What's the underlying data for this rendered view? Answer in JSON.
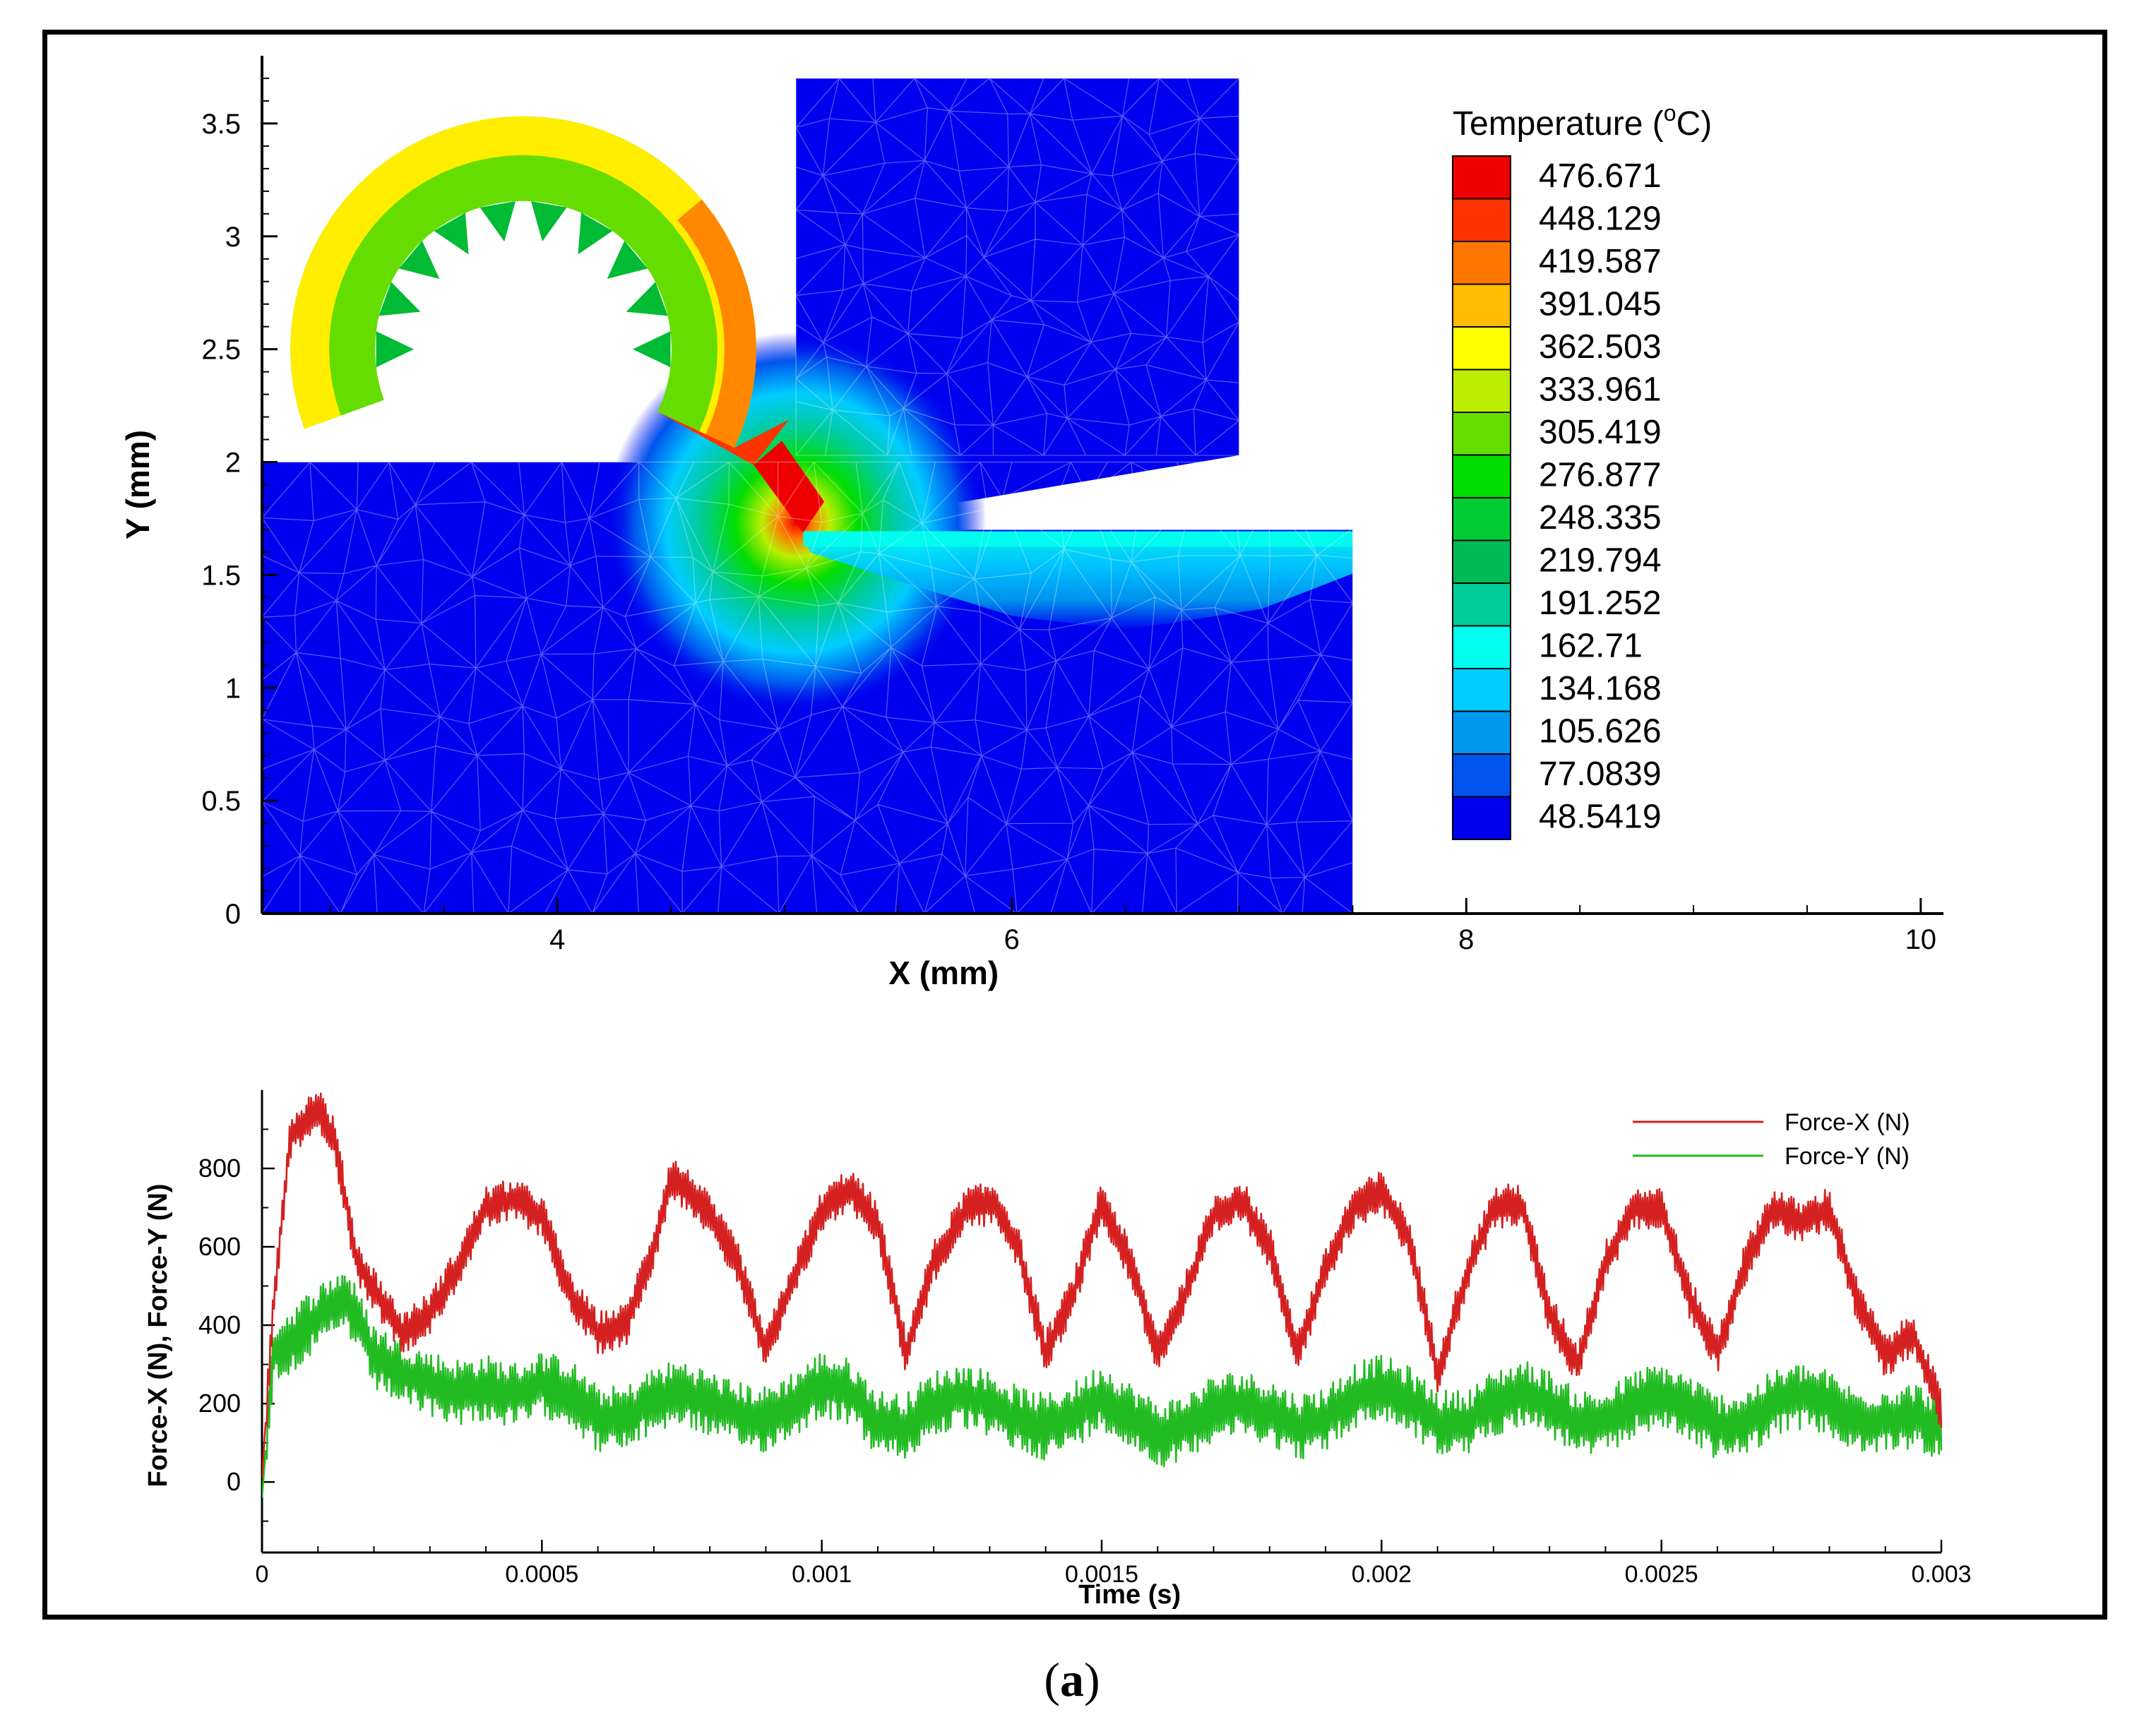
{
  "caption": {
    "open": "(",
    "letter": "a",
    "close": ")"
  },
  "chart_data": [
    {
      "type": "contour",
      "title": "",
      "xlabel": "X (mm)",
      "ylabel": "Y (mm)",
      "xlim": [
        2.7,
        10.1
      ],
      "ylim": [
        0,
        3.8
      ],
      "xticks": [
        4,
        6,
        8,
        10
      ],
      "yticks": [
        0,
        0.5,
        1,
        1.5,
        2,
        2.5,
        3,
        3.5
      ],
      "ytick_labels": [
        "0",
        "0.5",
        "1",
        "1.5",
        "2",
        "2.5",
        "3",
        "3.5"
      ],
      "legend": {
        "title_main": "Temperature (",
        "title_sup": "o",
        "title_end": "C)",
        "levels": [
          "476.671",
          "448.129",
          "419.587",
          "391.045",
          "362.503",
          "333.961",
          "305.419",
          "276.877",
          "248.335",
          "219.794",
          "191.252",
          "162.71",
          "134.168",
          "105.626",
          "77.0839",
          "48.5419"
        ],
        "colors": [
          "#ee0000",
          "#ff3300",
          "#ff7700",
          "#ffbb00",
          "#ffff00",
          "#bbee00",
          "#66dd00",
          "#00dd00",
          "#00cc33",
          "#00bb55",
          "#00cc99",
          "#00ffee",
          "#00ccff",
          "#0099ee",
          "#0055ee",
          "#0000ee"
        ]
      },
      "workpiece": {
        "x": [
          2.7,
          7.5
        ],
        "y": [
          0,
          2.0
        ],
        "machined_surface_y": 1.7,
        "tool_tip_x": 5.05
      },
      "tool": {
        "x": [
          5.05,
          7.0
        ],
        "top_y": 3.7,
        "rake_bottom_y": 2.03
      },
      "chip": {
        "center_x": 3.85,
        "center_y": 2.5,
        "temperature_range_c": [
          250,
          480
        ]
      },
      "base_color": "#0000ee"
    },
    {
      "type": "line",
      "title": "",
      "xlabel": "Time (s)",
      "ylabel": "Force-X (N), Force-Y (N)",
      "xlim": [
        0,
        0.003
      ],
      "ylim": [
        -180,
        1000
      ],
      "xticks": [
        0,
        0.0005,
        0.001,
        0.0015,
        0.002,
        0.0025,
        0.003
      ],
      "xtick_labels": [
        "0",
        "0.0005",
        "0.001",
        "0.0015",
        "0.002",
        "0.0025",
        "0.003"
      ],
      "yticks": [
        0,
        200,
        400,
        600,
        800
      ],
      "legend_position": "top-right",
      "series": [
        {
          "name": "Force-X (N)",
          "color": "#d42020",
          "t": [
            0,
            2e-05,
            5e-05,
            0.0001,
            0.00013,
            0.00017,
            0.00025,
            0.0003,
            0.00035,
            0.0004,
            0.00045,
            0.0005,
            0.00055,
            0.0006,
            0.00065,
            0.0007,
            0.00073,
            0.00078,
            0.00085,
            0.0009,
            0.00095,
            0.001,
            0.00105,
            0.0011,
            0.00115,
            0.0012,
            0.00126,
            0.00131,
            0.00135,
            0.0014,
            0.00145,
            0.0015,
            0.00155,
            0.0016,
            0.00165,
            0.0017,
            0.00175,
            0.0018,
            0.00185,
            0.0019,
            0.00195,
            0.002,
            0.00205,
            0.0021,
            0.00215,
            0.0022,
            0.00225,
            0.0023,
            0.00235,
            0.0024,
            0.00245,
            0.0025,
            0.00255,
            0.0026,
            0.00265,
            0.0027,
            0.00275,
            0.0028,
            0.00285,
            0.0029,
            0.00295,
            0.003
          ],
          "values": [
            10,
            450,
            880,
            960,
            870,
            560,
            380,
            430,
            550,
            700,
            720,
            680,
            480,
            380,
            400,
            600,
            780,
            720,
            560,
            330,
            520,
            690,
            750,
            660,
            330,
            560,
            700,
            710,
            600,
            330,
            480,
            720,
            560,
            330,
            480,
            680,
            720,
            600,
            330,
            540,
            700,
            740,
            620,
            280,
            520,
            700,
            710,
            430,
            300,
            560,
            700,
            700,
            470,
            330,
            560,
            700,
            660,
            700,
            460,
            320,
            380,
            180
          ]
        },
        {
          "name": "Force-Y (N)",
          "color": "#22bb22",
          "t": [
            0,
            2e-05,
            5e-05,
            0.0001,
            0.00015,
            0.0002,
            0.00025,
            0.0003,
            0.00035,
            0.0004,
            0.00045,
            0.0005,
            0.00055,
            0.0006,
            0.00065,
            0.0007,
            0.00075,
            0.0008,
            0.00085,
            0.0009,
            0.00095,
            0.001,
            0.00105,
            0.0011,
            0.00115,
            0.0012,
            0.00125,
            0.0013,
            0.00135,
            0.0014,
            0.00145,
            0.0015,
            0.00155,
            0.0016,
            0.00165,
            0.0017,
            0.00175,
            0.0018,
            0.00185,
            0.0019,
            0.00195,
            0.002,
            0.00205,
            0.0021,
            0.00215,
            0.0022,
            0.00225,
            0.0023,
            0.00235,
            0.0024,
            0.00245,
            0.0025,
            0.00255,
            0.0026,
            0.00265,
            0.0027,
            0.00275,
            0.0028,
            0.00285,
            0.0029,
            0.00295,
            0.003
          ],
          "values": [
            -40,
            330,
            360,
            420,
            470,
            320,
            280,
            250,
            230,
            240,
            220,
            250,
            230,
            160,
            160,
            210,
            230,
            200,
            170,
            160,
            200,
            250,
            230,
            150,
            140,
            200,
            220,
            200,
            160,
            140,
            170,
            220,
            170,
            120,
            140,
            190,
            200,
            180,
            140,
            160,
            220,
            240,
            210,
            150,
            150,
            200,
            230,
            200,
            150,
            150,
            200,
            220,
            190,
            140,
            150,
            200,
            220,
            200,
            150,
            160,
            170,
            140
          ]
        }
      ]
    }
  ]
}
